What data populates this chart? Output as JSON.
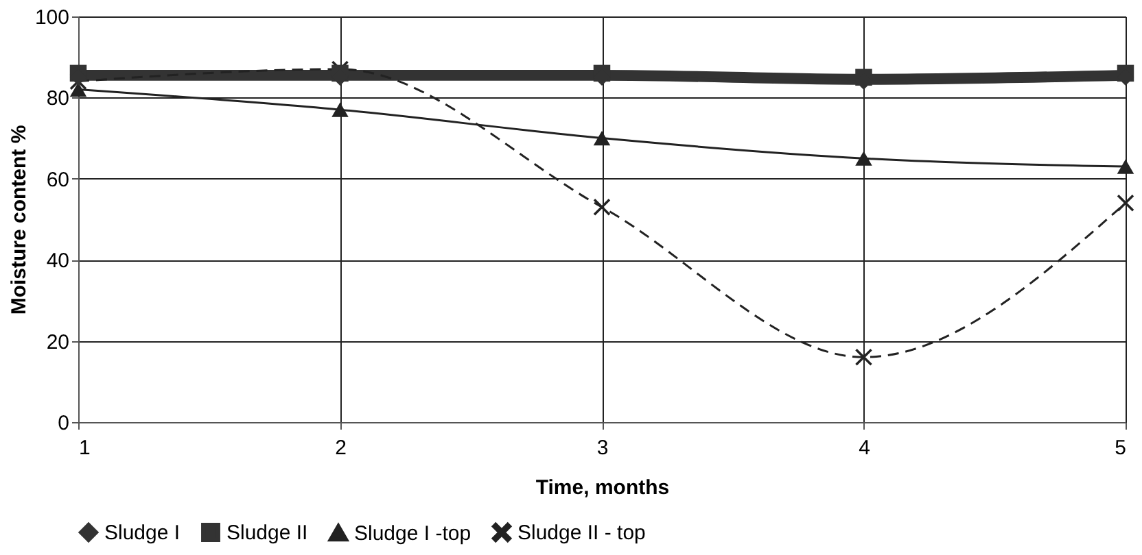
{
  "chart_data": {
    "type": "line",
    "xlabel": "Time, months",
    "ylabel": "Moisture content %",
    "x": [
      1,
      2,
      3,
      4,
      5
    ],
    "xlim": [
      1,
      5
    ],
    "xticks": [
      1,
      2,
      3,
      4,
      5
    ],
    "ylim": [
      0,
      100
    ],
    "yticks": [
      0,
      20,
      40,
      60,
      80,
      100
    ],
    "grid": true,
    "legend": "bottom",
    "series": [
      {
        "name": "Sludge I",
        "color": "#333333",
        "values": [
          85,
          85,
          85,
          84,
          85
        ],
        "marker": "diamond",
        "line_style": "solid"
      },
      {
        "name": "Sludge II",
        "color": "#333333",
        "values": [
          86,
          86,
          86,
          85,
          86
        ],
        "marker": "square",
        "line_style": "solid"
      },
      {
        "name": "Sludge I -top",
        "color": "#222222",
        "values": [
          82,
          77,
          70,
          65,
          63
        ],
        "marker": "triangle",
        "line_style": "solid"
      },
      {
        "name": "Sludge II - top",
        "color": "#222222",
        "values": [
          84,
          87,
          53,
          16,
          54
        ],
        "marker": "cross",
        "line_style": "dashed"
      }
    ]
  }
}
